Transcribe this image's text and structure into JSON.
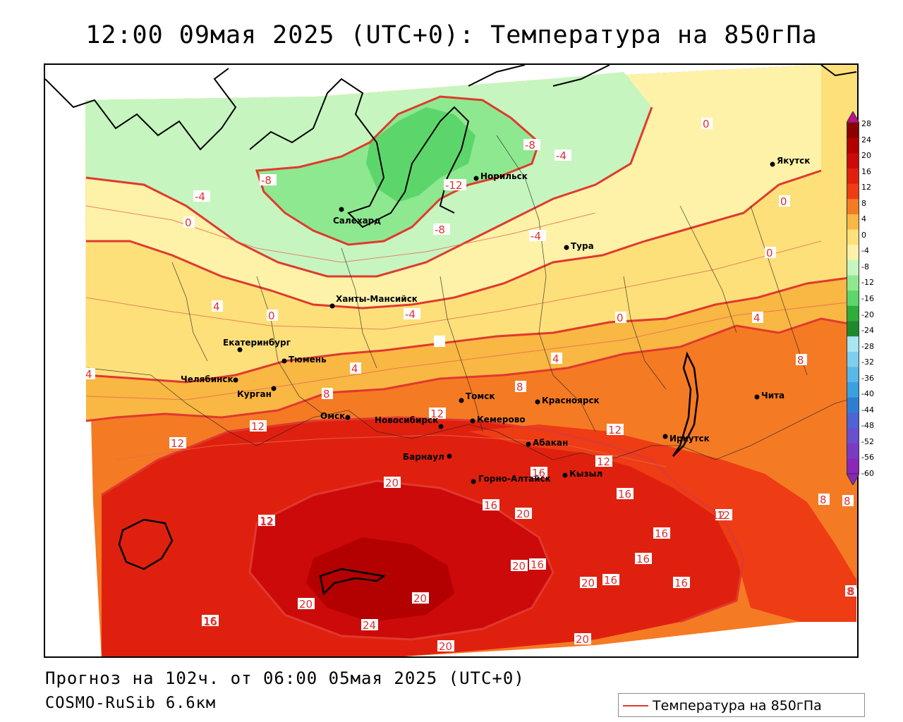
{
  "title": "12:00 09мая 2025 (UTC+0): Температура на 850гПа",
  "footer": {
    "forecast": "Прогноз на 102ч. от 06:00 05мая 2025 (UTC+0)",
    "model": "COSMO-RuSib 6.6км"
  },
  "legend": {
    "label": "Температура на 850гПа",
    "line_color": "#e0392f"
  },
  "colorbar": {
    "ticks": [
      "28",
      "24",
      "20",
      "16",
      "12",
      "8",
      "4",
      "0",
      "-4",
      "-8",
      "-12",
      "-16",
      "-20",
      "-24",
      "-28",
      "-32",
      "-36",
      "-40",
      "-44",
      "-48",
      "-52",
      "-56",
      "-60"
    ],
    "colors": [
      "#8b0000",
      "#b30000",
      "#cc0a0a",
      "#e0200e",
      "#ee3c15",
      "#f57a24",
      "#f9b743",
      "#fde07a",
      "#fdf2a8",
      "#c6f5c0",
      "#8ee890",
      "#5cd66a",
      "#2ead3a",
      "#1d8a2a",
      "#a8e6f2",
      "#7ecfee",
      "#58b8eb",
      "#3aa0e2",
      "#2d7fd6",
      "#4e63d8",
      "#6a4fd0",
      "#7a3bc4",
      "#8a26b8"
    ]
  },
  "cities": [
    "Якутск",
    "Норильск",
    "Салехард",
    "Тура",
    "Ханты-Мансийск",
    "Екатеринбург",
    "Тюмень",
    "Челябинск",
    "Курган",
    "Омск",
    "Томск",
    "Новосибирск",
    "Кемерово",
    "Красноярск",
    "Абакан",
    "Барнаул",
    "Горно-Алтайск",
    "Кызыл",
    "Иркутск",
    "Чита"
  ],
  "isotherm_labels": [
    "0",
    "0",
    "0",
    "0",
    "0",
    "0",
    "-8",
    "-8",
    "-4",
    "-12",
    "-8",
    "-4",
    "-4",
    "0",
    "4",
    "0",
    "-4",
    "0",
    "4",
    "4",
    "4",
    "8",
    "8",
    "4",
    "8",
    "8",
    "8",
    "12",
    "12",
    "12",
    "12",
    "12",
    "16",
    "16",
    "20",
    "20",
    "12",
    "12",
    "16",
    "16",
    "16",
    "16",
    "20",
    "16",
    "16",
    "20",
    "16",
    "20",
    "20",
    "24",
    "20",
    "20",
    "8",
    "8",
    "12",
    "16",
    "12"
  ]
}
